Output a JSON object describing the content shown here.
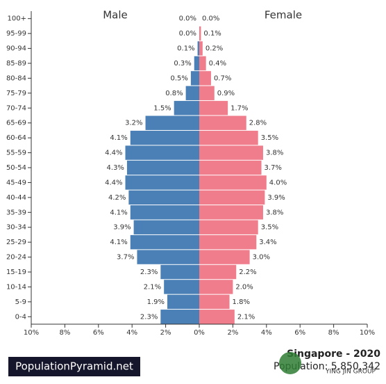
{
  "chart_data": {
    "type": "population-pyramid",
    "title": "Singapore - 2020",
    "subtitle": "Population: 5,850,342",
    "source": "PopulationPyramid.net",
    "watermark": "YING JIN GROUP",
    "categories": [
      "100+",
      "95-99",
      "90-94",
      "85-89",
      "80-84",
      "75-79",
      "70-74",
      "65-69",
      "60-64",
      "55-59",
      "50-54",
      "45-49",
      "40-44",
      "35-39",
      "30-34",
      "25-29",
      "20-24",
      "15-19",
      "10-14",
      "5-9",
      "0-4"
    ],
    "series": [
      {
        "name": "Male",
        "color": "#4a80b6",
        "values": [
          0.0,
          0.0,
          0.1,
          0.3,
          0.5,
          0.8,
          1.5,
          3.2,
          4.1,
          4.4,
          4.3,
          4.4,
          4.2,
          4.1,
          3.9,
          4.1,
          3.7,
          2.3,
          2.1,
          1.9,
          2.3
        ],
        "value_labels": [
          "0.0%",
          "0.0%",
          "0.1%",
          "0.3%",
          "0.5%",
          "0.8%",
          "1.5%",
          "3.2%",
          "4.1%",
          "4.4%",
          "4.3%",
          "4.4%",
          "4.2%",
          "4.1%",
          "3.9%",
          "4.1%",
          "3.7%",
          "2.3%",
          "2.1%",
          "1.9%",
          "2.3%"
        ]
      },
      {
        "name": "Female",
        "color": "#f07d8c",
        "values": [
          0.0,
          0.1,
          0.2,
          0.4,
          0.7,
          0.9,
          1.7,
          2.8,
          3.5,
          3.8,
          3.7,
          4.0,
          3.9,
          3.8,
          3.5,
          3.4,
          3.0,
          2.2,
          2.0,
          1.8,
          2.1
        ],
        "value_labels": [
          "0.0%",
          "0.1%",
          "0.2%",
          "0.4%",
          "0.7%",
          "0.9%",
          "1.7%",
          "2.8%",
          "3.5%",
          "3.8%",
          "3.7%",
          "4.0%",
          "3.9%",
          "3.8%",
          "3.5%",
          "3.4%",
          "3.0%",
          "2.2%",
          "2.0%",
          "1.8%",
          "2.1%"
        ]
      }
    ],
    "xlim": [
      -10,
      10
    ],
    "xticks": [
      {
        "value": -10,
        "label": "10%"
      },
      {
        "value": -8,
        "label": "8%"
      },
      {
        "value": -6,
        "label": "6%"
      },
      {
        "value": -4,
        "label": "4%"
      },
      {
        "value": -2,
        "label": "2%"
      },
      {
        "value": 0,
        "label": "0%"
      },
      {
        "value": 2,
        "label": "2%"
      },
      {
        "value": 4,
        "label": "4%"
      },
      {
        "value": 6,
        "label": "6%"
      },
      {
        "value": 8,
        "label": "8%"
      },
      {
        "value": 10,
        "label": "10%"
      }
    ]
  }
}
